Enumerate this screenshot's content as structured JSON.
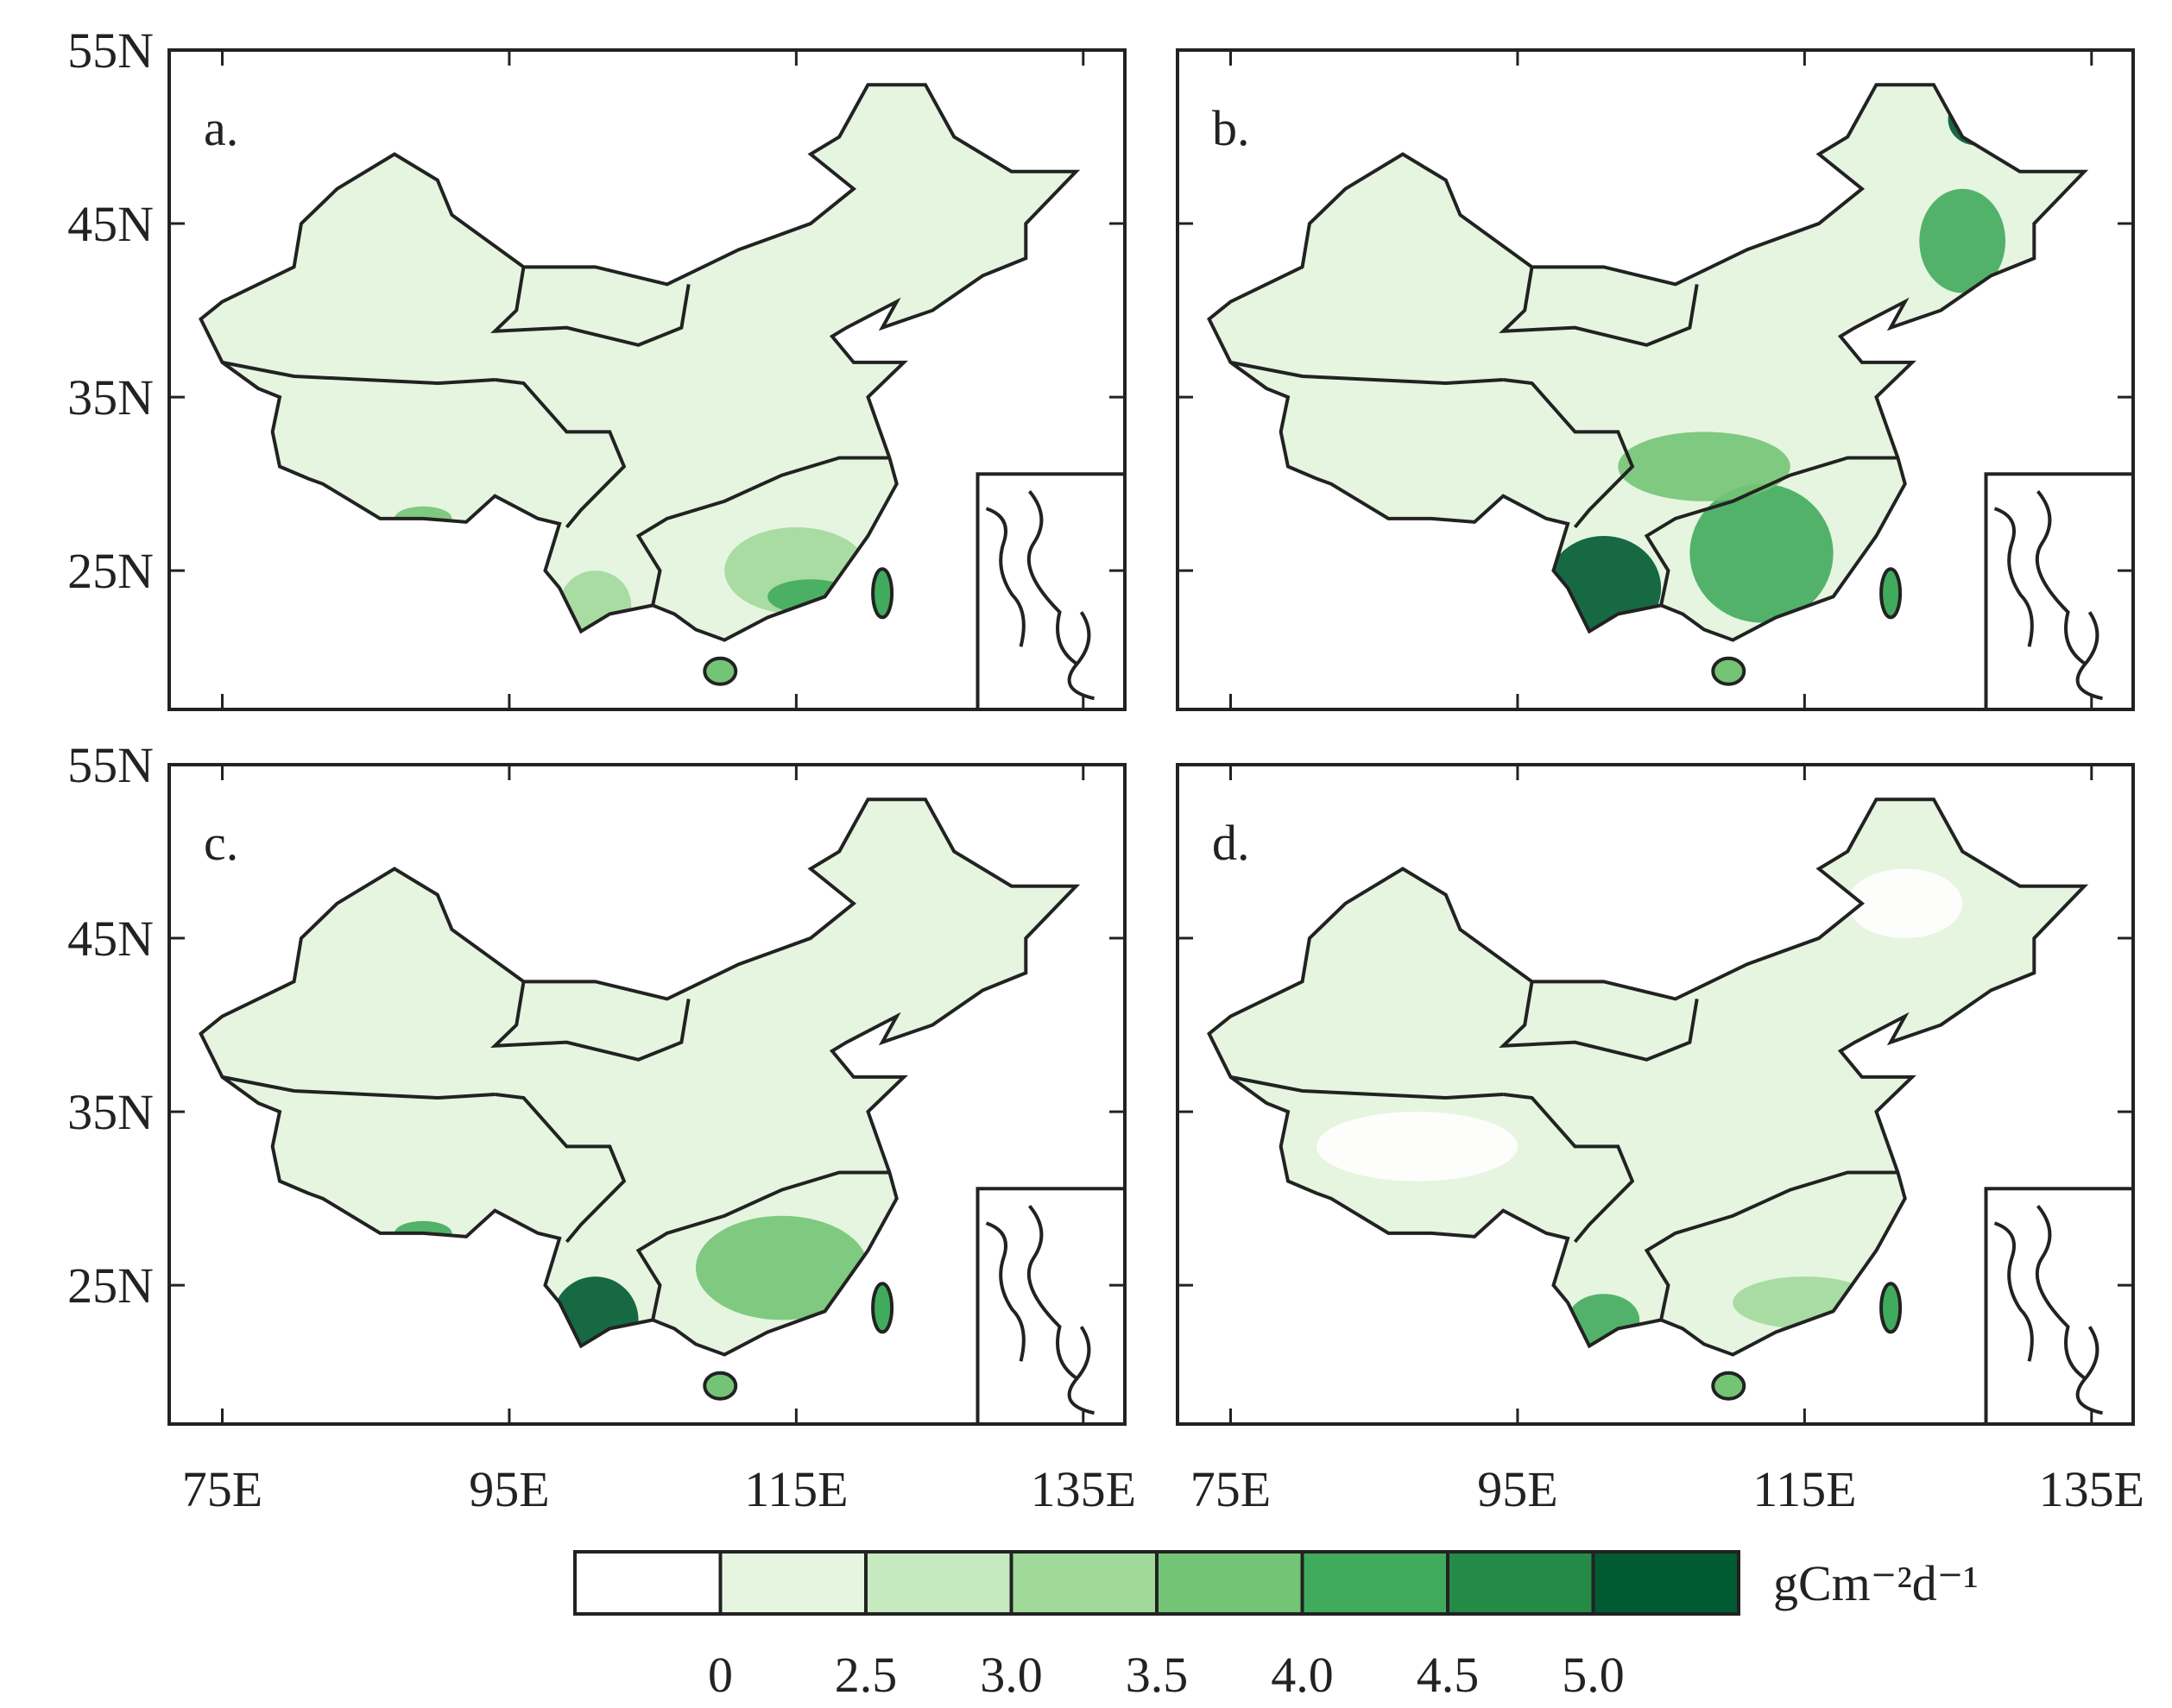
{
  "panels": [
    {
      "label": "a."
    },
    {
      "label": "b."
    },
    {
      "label": "c."
    },
    {
      "label": "d."
    }
  ],
  "latitude_ticks": [
    "55N",
    "45N",
    "35N",
    "25N"
  ],
  "longitude_ticks": [
    "75E",
    "95E",
    "115E",
    "135E"
  ],
  "colorbar": {
    "colors": [
      "#ffffff",
      "#e5f5e0",
      "#c7e9c0",
      "#a1d99b",
      "#74c476",
      "#41ab5d",
      "#238b45",
      "#005a32"
    ],
    "tick_labels": [
      "0",
      "2.5",
      "3.0",
      "3.5",
      "4.0",
      "4.5",
      "5.0"
    ],
    "unit": "gCm⁻²d⁻¹"
  }
}
